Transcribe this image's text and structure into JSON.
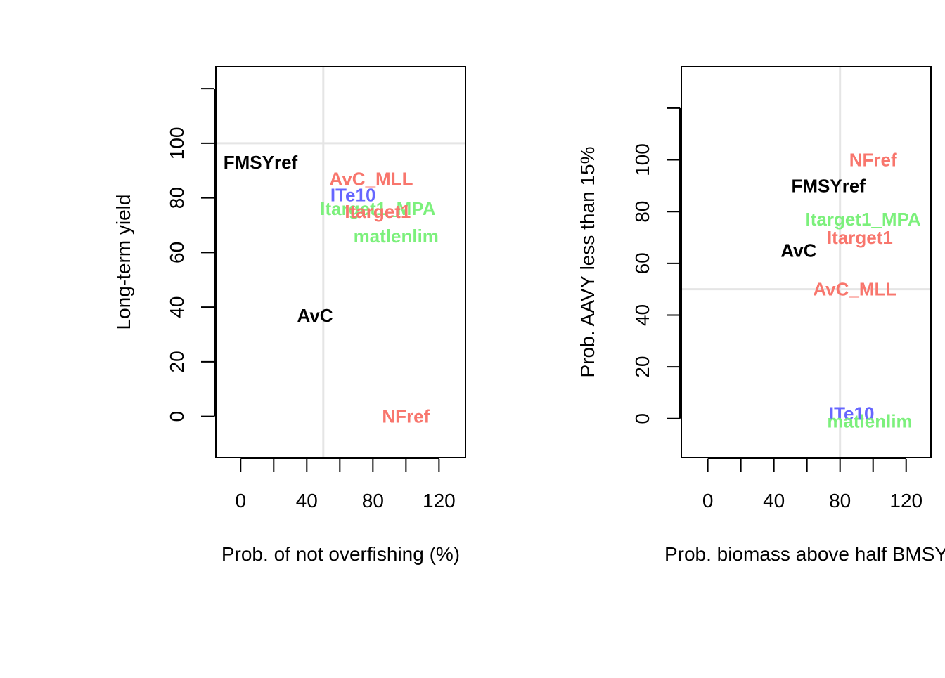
{
  "colors": {
    "black": "#000000",
    "red": "#F8766D",
    "green": "#7CF07C",
    "blue": "#6666FF",
    "refline": "#E5E5E5"
  },
  "chart_data": [
    {
      "type": "scatter",
      "xlabel": "Prob. of not overfishing (%)",
      "ylabel": "Long-term yield",
      "xlim": [
        -15,
        136
      ],
      "ylim": [
        -15,
        128
      ],
      "xticks": [
        0,
        20,
        40,
        60,
        80,
        100,
        120
      ],
      "xtick_labels": [
        "0",
        "",
        "40",
        "",
        "80",
        "",
        "120"
      ],
      "yticks": [
        0,
        20,
        40,
        60,
        80,
        100,
        120
      ],
      "ytick_labels": [
        "0",
        "20",
        "40",
        "60",
        "80",
        "100",
        ""
      ],
      "ref_lines": {
        "x": 50,
        "y": 100
      },
      "points": [
        {
          "label": "FMSYref",
          "x": 12,
          "y": 93,
          "color": "black"
        },
        {
          "label": "AvC_MLL",
          "x": 79,
          "y": 87,
          "color": "red"
        },
        {
          "label": "ITe10",
          "x": 68,
          "y": 81,
          "color": "blue"
        },
        {
          "label": "Itarget1_MPA",
          "x": 83,
          "y": 76,
          "color": "green"
        },
        {
          "label": "Itarget1",
          "x": 83,
          "y": 75,
          "color": "red"
        },
        {
          "label": "matlenlim",
          "x": 94,
          "y": 66,
          "color": "green"
        },
        {
          "label": "AvC",
          "x": 45,
          "y": 37,
          "color": "black"
        },
        {
          "label": "NFref",
          "x": 100,
          "y": 0,
          "color": "red"
        }
      ]
    },
    {
      "type": "scatter",
      "xlabel": "Prob. biomass above half BMSY",
      "ylabel": "Prob. AAVY less than 15%",
      "xlim": [
        -16,
        135
      ],
      "ylim": [
        -15,
        136
      ],
      "xticks": [
        0,
        20,
        40,
        60,
        80,
        100,
        120
      ],
      "xtick_labels": [
        "0",
        "",
        "40",
        "",
        "80",
        "",
        "120"
      ],
      "yticks": [
        0,
        20,
        40,
        60,
        80,
        100,
        120
      ],
      "ytick_labels": [
        "0",
        "20",
        "40",
        "60",
        "80",
        "100",
        ""
      ],
      "ref_lines": {
        "x": 80,
        "y": 50
      },
      "points": [
        {
          "label": "NFref",
          "x": 100,
          "y": 100,
          "color": "red"
        },
        {
          "label": "FMSYref",
          "x": 73,
          "y": 90,
          "color": "black"
        },
        {
          "label": "Itarget1_MPA",
          "x": 94,
          "y": 77,
          "color": "green"
        },
        {
          "label": "Itarget1",
          "x": 92,
          "y": 70,
          "color": "red"
        },
        {
          "label": "AvC",
          "x": 55,
          "y": 65,
          "color": "black"
        },
        {
          "label": "AvC_MLL",
          "x": 89,
          "y": 50,
          "color": "red"
        },
        {
          "label": "ITe10",
          "x": 87,
          "y": 2,
          "color": "blue"
        },
        {
          "label": "matlenlim",
          "x": 98,
          "y": -1,
          "color": "green"
        }
      ]
    }
  ]
}
